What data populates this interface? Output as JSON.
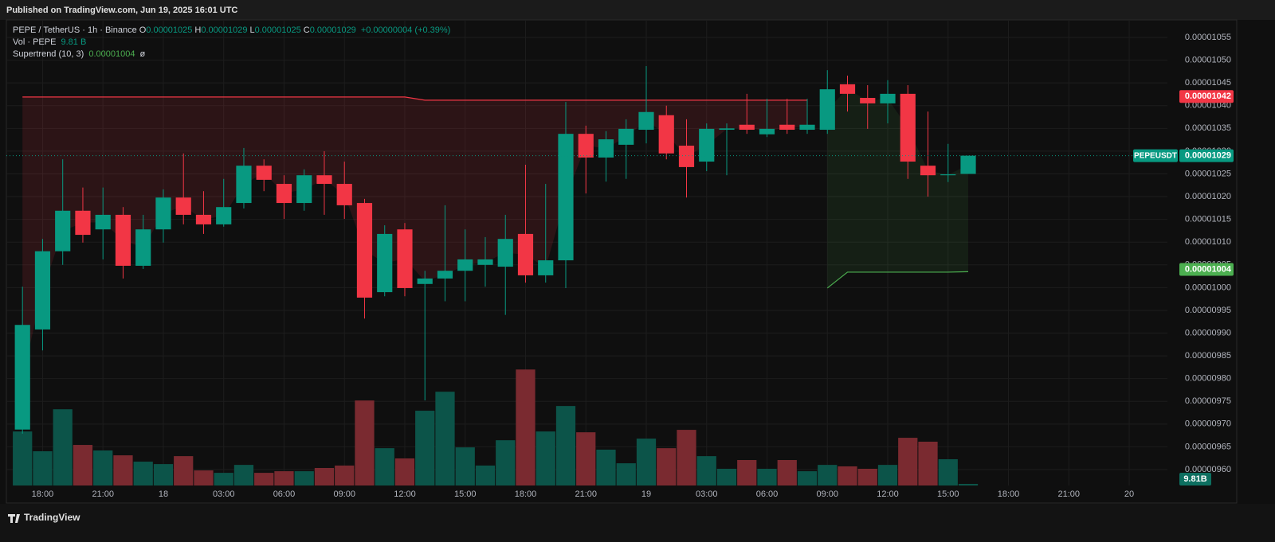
{
  "header": {
    "published": "Published on TradingView.com, Jun 19, 2025 16:01 UTC"
  },
  "footer": {
    "brand": "TradingView"
  },
  "legend": {
    "symbol": "PEPE / TetherUS · 1h · Binance",
    "fields": [
      {
        "key": "O",
        "value": "0.00001025"
      },
      {
        "key": "H",
        "value": "0.00001029"
      },
      {
        "key": "L",
        "value": "0.00001025"
      },
      {
        "key": "C",
        "value": "0.00001029"
      }
    ],
    "change": "+0.00000004 (+0.39%)",
    "volume_name": "Vol · PEPE",
    "volume_value": "9.81 B",
    "supertrend_name": "Supertrend (10, 3)",
    "supertrend_value": "0.00001004",
    "supertrend_extra": "ø"
  },
  "chart_data": {
    "type": "candlestick",
    "up_color": "#089981",
    "down_color": "#f23645",
    "x": [
      -7,
      -6,
      -5,
      -4,
      -3,
      -2,
      -1,
      0,
      1,
      2,
      3,
      4,
      5,
      6,
      7,
      8,
      9,
      10,
      11,
      12,
      13,
      14,
      15,
      16,
      17,
      18,
      19,
      20,
      21,
      22,
      23,
      24,
      25,
      26,
      27,
      28,
      29,
      30,
      31,
      32,
      33,
      34,
      35,
      36,
      37,
      38,
      39,
      40
    ],
    "open": [
      9.688e-06,
      9.908e-06,
      1.008e-05,
      1.0169e-05,
      1.0128e-05,
      1.016e-05,
      1.0048e-05,
      1.0128e-05,
      1.0198e-05,
      1.016e-05,
      1.0139e-05,
      1.0186e-05,
      1.0268e-05,
      1.0228e-05,
      1.0186e-05,
      1.0247e-05,
      1.0228e-05,
      1.0186e-05,
      9.99e-06,
      1.0128e-05,
      1.0008e-05,
      1.002e-05,
      1.0037e-05,
      1.005e-05,
      1.0046e-05,
      1.0118e-05,
      1.0027e-05,
      1.006e-05,
      1.0338e-05,
      1.0286e-05,
      1.0314e-05,
      1.0347e-05,
      1.0379e-05,
      1.0312e-05,
      1.0277e-05,
      1.0347e-05,
      1.0358e-05,
      1.0337e-05,
      1.0358e-05,
      1.0347e-05,
      1.0347e-05,
      1.0447e-05,
      1.0417e-05,
      1.0405e-05,
      1.0426e-05,
      1.0268e-05,
      1.0247e-05,
      1.025e-05
    ],
    "high": [
      1.0002e-05,
      1.0107e-05,
      1.0282e-05,
      1.022e-05,
      1.022e-05,
      1.0177e-05,
      1.016e-05,
      1.0216e-05,
      1.0295e-05,
      1.0212e-05,
      1.0239e-05,
      1.0307e-05,
      1.0282e-05,
      1.0247e-05,
      1.026e-05,
      1.03e-05,
      1.0277e-05,
      1.0195e-05,
      1.0137e-05,
      1.0142e-05,
      1.0037e-05,
      1.0181e-05,
      1.0128e-05,
      1.0111e-05,
      1.016e-05,
      1.027e-05,
      1.0228e-05,
      1.0408e-05,
      1.0356e-05,
      1.0344e-05,
      1.037e-05,
      1.0487e-05,
      1.04e-05,
      1.037e-05,
      1.0361e-05,
      1.0361e-05,
      1.0426e-05,
      1.0415e-05,
      1.0415e-05,
      1.0415e-05,
      1.0478e-05,
      1.0466e-05,
      1.0445e-05,
      1.0456e-05,
      1.0445e-05,
      1.0387e-05,
      1.0316e-05,
      1.029e-05
    ],
    "low": [
      9.679e-06,
      9.862e-06,
      1.005e-05,
      1.0099e-05,
      1.0062e-05,
      1.002e-05,
      1.0041e-05,
      1.0099e-05,
      1.0139e-05,
      1.0118e-05,
      1.0134e-05,
      1.0174e-05,
      1.0212e-05,
      1.0151e-05,
      1.0169e-05,
      1.016e-05,
      1.0151e-05,
      9.932e-06,
      9.981e-06,
      9.981e-06,
      9.752e-06,
      9.97e-06,
      9.97e-06,
      1.0002e-05,
      9.94e-06,
      1.0011e-05,
      1.0011e-05,
      9.999e-06,
      1.0207e-05,
      1.0233e-05,
      1.0239e-05,
      1.0317e-05,
      1.0282e-05,
      1.0198e-05,
      1.0256e-05,
      1.0247e-05,
      1.0338e-05,
      1.0331e-05,
      1.0338e-05,
      1.0338e-05,
      1.0338e-05,
      1.0387e-05,
      1.0349e-05,
      1.0361e-05,
      1.0239e-05,
      1.02e-05,
      1.0232e-05,
      1.025e-05
    ],
    "close": [
      9.918e-06,
      1.008e-05,
      1.0169e-05,
      1.0116e-05,
      1.016e-05,
      1.0048e-05,
      1.0128e-05,
      1.0198e-05,
      1.016e-05,
      1.0139e-05,
      1.0177e-05,
      1.0268e-05,
      1.0237e-05,
      1.0186e-05,
      1.0247e-05,
      1.0228e-05,
      1.0181e-05,
      9.978e-06,
      1.0118e-05,
      9.999e-06,
      1.002e-05,
      1.0037e-05,
      1.0062e-05,
      1.0062e-05,
      1.0107e-05,
      1.0027e-05,
      1.006e-05,
      1.0338e-05,
      1.0286e-05,
      1.0326e-05,
      1.0349e-05,
      1.0386e-05,
      1.0295e-05,
      1.0265e-05,
      1.0349e-05,
      1.035e-05,
      1.0347e-05,
      1.0349e-05,
      1.0347e-05,
      1.0358e-05,
      1.0436e-05,
      1.0426e-05,
      1.0405e-05,
      1.0426e-05,
      1.0277e-05,
      1.0247e-05,
      1.0249e-05,
      1.029e-05
    ],
    "volume": {
      "up_color": "#0c5449",
      "down_color": "#7a2a30",
      "values": [
        333,
        211,
        470,
        250,
        216,
        186,
        147,
        132,
        181,
        93,
        78,
        127,
        78,
        88,
        88,
        108,
        123,
        524,
        230,
        167,
        461,
        578,
        235,
        123,
        279,
        715,
        333,
        490,
        328,
        221,
        137,
        289,
        230,
        343,
        181,
        103,
        157,
        103,
        157,
        88,
        127,
        118,
        103,
        127,
        294,
        270,
        162,
        9.81
      ],
      "last_label": "9.81B"
    },
    "supertrend": {
      "down": {
        "color": "#f23645",
        "fill": "rgba(242,54,69,0.13)",
        "values": [
          1.0419e-05,
          1.0419e-05,
          1.0419e-05,
          1.0419e-05,
          1.0419e-05,
          1.0419e-05,
          1.0419e-05,
          1.0419e-05,
          1.0419e-05,
          1.0419e-05,
          1.0419e-05,
          1.0419e-05,
          1.0419e-05,
          1.0419e-05,
          1.0419e-05,
          1.0419e-05,
          1.0419e-05,
          1.0419e-05,
          1.0419e-05,
          1.0419e-05,
          1.0412e-05,
          1.0412e-05,
          1.0412e-05,
          1.0412e-05,
          1.0412e-05,
          1.0412e-05,
          1.0412e-05,
          1.0412e-05,
          1.0412e-05,
          1.0412e-05,
          1.0412e-05,
          1.0412e-05,
          1.0412e-05,
          1.0412e-05,
          1.0412e-05,
          1.0412e-05,
          1.0412e-05,
          1.0412e-05,
          1.0412e-05,
          1.0412e-05,
          null,
          null,
          null,
          null,
          null,
          null,
          null,
          null
        ]
      },
      "up": {
        "color": "#4caf50",
        "fill": "rgba(76,175,80,0.10)",
        "values": [
          null,
          null,
          null,
          null,
          null,
          null,
          null,
          null,
          null,
          null,
          null,
          null,
          null,
          null,
          null,
          null,
          null,
          null,
          null,
          null,
          null,
          null,
          null,
          null,
          null,
          null,
          null,
          null,
          null,
          null,
          null,
          null,
          null,
          null,
          null,
          null,
          null,
          null,
          null,
          null,
          9.999e-06,
          1.0034e-05,
          1.0034e-05,
          1.0034e-05,
          1.0034e-05,
          1.0034e-05,
          1.0034e-05,
          1.0035e-05
        ]
      }
    },
    "last_price": {
      "name": "PEPEUSDT",
      "value": 1.029e-05,
      "color": "#089981"
    },
    "price_lines": [
      {
        "value": 1.042e-05,
        "color": "#f23645"
      },
      {
        "value": 1.004e-05,
        "color": "#4caf50"
      }
    ],
    "xlim": [
      -7.8,
      49.9
    ],
    "xticks": [
      {
        "value": -6,
        "label": "18:00"
      },
      {
        "value": -3,
        "label": "21:00"
      },
      {
        "value": 0,
        "label": "18"
      },
      {
        "value": 3,
        "label": "03:00"
      },
      {
        "value": 6,
        "label": "06:00"
      },
      {
        "value": 9,
        "label": "09:00"
      },
      {
        "value": 12,
        "label": "12:00"
      },
      {
        "value": 15,
        "label": "15:00"
      },
      {
        "value": 18,
        "label": "18:00"
      },
      {
        "value": 21,
        "label": "21:00"
      },
      {
        "value": 24,
        "label": "19"
      },
      {
        "value": 27,
        "label": "03:00"
      },
      {
        "value": 30,
        "label": "06:00"
      },
      {
        "value": 33,
        "label": "09:00"
      },
      {
        "value": 36,
        "label": "12:00"
      },
      {
        "value": 39,
        "label": "15:00"
      },
      {
        "value": 42,
        "label": "18:00"
      },
      {
        "value": 45,
        "label": "21:00"
      },
      {
        "value": 48,
        "label": "20"
      }
    ],
    "ylim": [
      9.565e-06,
      1.05885e-05
    ],
    "yticks": [
      1.055e-05,
      {
        "value": 1.05e-05,
        "label": "0.00001050"
      },
      1.045e-05,
      {
        "value": 1.04e-05,
        "label": "0.00001040"
      },
      1.035e-05,
      {
        "value": 1.03e-05,
        "label": "0.00001030"
      },
      1.025e-05,
      {
        "value": 1.02e-05,
        "label": "0.00001020"
      },
      1.015e-05,
      {
        "value": 1.01e-05,
        "label": "0.00001010"
      },
      1.005e-05,
      {
        "value": 1e-05,
        "label": "0.00001000"
      },
      9.95e-06,
      {
        "value": 9.9e-06,
        "label": "0.00000990"
      },
      9.85e-06,
      {
        "value": 9.8e-06,
        "label": "0.00000980"
      },
      9.75e-06,
      {
        "value": 9.7e-06,
        "label": "0.00000970"
      },
      9.65e-06,
      {
        "value": 9.6e-06,
        "label": "0.00000960"
      }
    ],
    "y2lim": [
      0,
      2870
    ],
    "grid": true
  }
}
